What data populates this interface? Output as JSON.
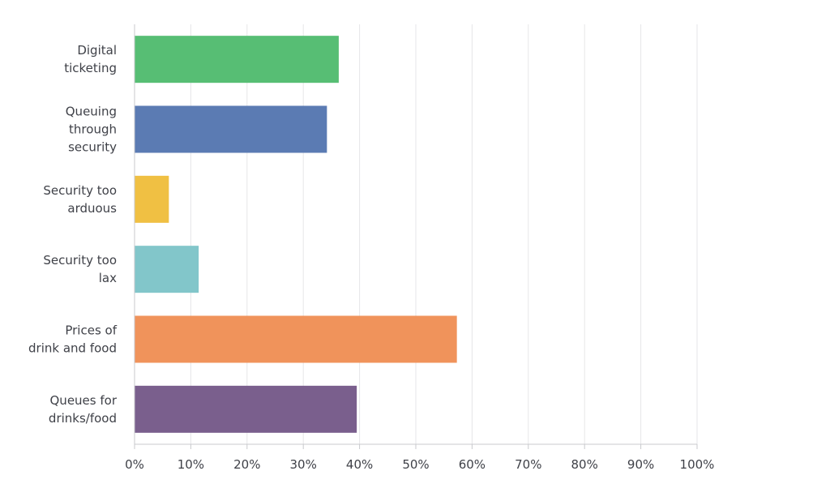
{
  "chart_data": {
    "type": "bar",
    "orientation": "horizontal",
    "categories": [
      [
        "Digital",
        "ticketing"
      ],
      [
        "Queuing",
        "through",
        "security"
      ],
      [
        "Security too",
        "arduous"
      ],
      [
        "Security too",
        "lax"
      ],
      [
        "Prices of",
        "drink and food"
      ],
      [
        "Queues for",
        "drinks/food"
      ]
    ],
    "values": [
      36.3,
      34.2,
      6.1,
      11.4,
      57.3,
      39.5
    ],
    "colors": [
      "#57be74",
      "#5b7bb3",
      "#f0c043",
      "#82c6ca",
      "#f0935b",
      "#7a5f8d"
    ],
    "xlim": [
      0,
      100
    ],
    "xticks": [
      0,
      10,
      20,
      30,
      40,
      50,
      60,
      70,
      80,
      90,
      100
    ],
    "xtick_labels": [
      "0%",
      "10%",
      "20%",
      "30%",
      "40%",
      "50%",
      "60%",
      "70%",
      "80%",
      "90%",
      "100%"
    ],
    "grid": true,
    "title": "",
    "xlabel": "",
    "ylabel": ""
  }
}
